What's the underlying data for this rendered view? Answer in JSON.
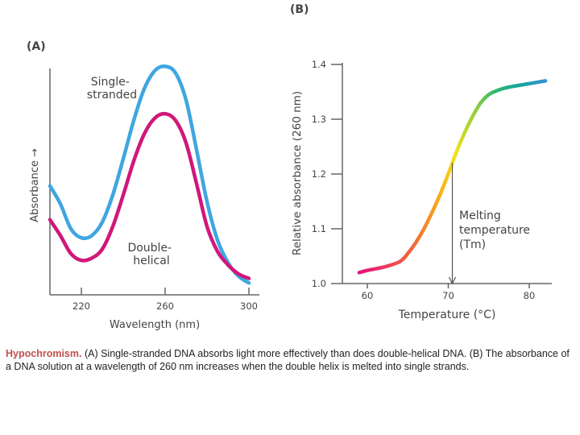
{
  "panel_a": {
    "label": "(A)",
    "ylabel": "Absorbance →",
    "xlabel": "Wavelength (nm)",
    "annotations": [
      [
        "Single-",
        "stranded"
      ],
      [
        "Double-",
        "helical"
      ]
    ]
  },
  "panel_b": {
    "label": "(B)",
    "ylabel": "Relative absorbance (260 nm)",
    "xlabel": "Temperature (°C)",
    "annotation": [
      "Melting",
      "temperature",
      "(Tm)"
    ]
  },
  "caption": {
    "lead": "Hypochromism.",
    "text": "(A) Single-stranded DNA absorbs light more effectively than does double-helical DNA. (B) The absorbance of a DNA solution at a wavelength of 260 nm increases when the double helix is melted into single strands."
  },
  "colors": {
    "single_stranded": "#3fa6e0",
    "double_helical": "#d0177a",
    "axis": "#666666",
    "caption_lead": "#c0504d"
  },
  "chart_data": [
    {
      "type": "line",
      "title": "(A)",
      "xlabel": "Wavelength (nm)",
      "ylabel": "Absorbance",
      "x_ticks": [
        220,
        260,
        300
      ],
      "xlim": [
        205,
        305
      ],
      "ylim": [
        0,
        1
      ],
      "y_ticks_shown": false,
      "series": [
        {
          "name": "Single-stranded",
          "color": "#3fa6e0",
          "x": [
            205,
            210,
            215,
            220,
            225,
            230,
            235,
            240,
            245,
            250,
            255,
            260,
            265,
            270,
            275,
            280,
            285,
            290,
            295,
            300
          ],
          "y": [
            0.44,
            0.36,
            0.25,
            0.21,
            0.22,
            0.28,
            0.4,
            0.56,
            0.73,
            0.87,
            0.95,
            0.97,
            0.94,
            0.82,
            0.6,
            0.37,
            0.2,
            0.1,
            0.04,
            0.01
          ]
        },
        {
          "name": "Double-helical",
          "color": "#d0177a",
          "x": [
            205,
            210,
            215,
            220,
            225,
            230,
            235,
            240,
            245,
            250,
            255,
            260,
            265,
            270,
            275,
            280,
            285,
            290,
            295,
            300
          ],
          "y": [
            0.29,
            0.22,
            0.14,
            0.11,
            0.12,
            0.16,
            0.26,
            0.4,
            0.55,
            0.67,
            0.74,
            0.76,
            0.73,
            0.63,
            0.45,
            0.26,
            0.15,
            0.09,
            0.05,
            0.03
          ]
        }
      ]
    },
    {
      "type": "line",
      "title": "(B)",
      "xlabel": "Temperature (°C)",
      "ylabel": "Relative absorbance (260 nm)",
      "xlim": [
        56,
        84
      ],
      "ylim": [
        1.0,
        1.4
      ],
      "x_ticks": [
        60,
        70,
        80
      ],
      "y_ticks": [
        1.0,
        1.1,
        1.2,
        1.3,
        1.4
      ],
      "annotation": {
        "text": "Melting temperature (Tm)",
        "x": 70.5
      },
      "series": [
        {
          "name": "",
          "color_gradient": [
            "#e8137a",
            "#f26b3a",
            "#f7a51c",
            "#f3e21b",
            "#9bd03a",
            "#2bb673",
            "#16a3a1",
            "#3a8fd8"
          ],
          "x": [
            59,
            60,
            62,
            64,
            65,
            66,
            67,
            68,
            69,
            70,
            71,
            72,
            73,
            74,
            75,
            76,
            77,
            78,
            80,
            82
          ],
          "y": [
            1.02,
            1.024,
            1.03,
            1.04,
            1.055,
            1.075,
            1.1,
            1.13,
            1.163,
            1.2,
            1.24,
            1.275,
            1.305,
            1.33,
            1.345,
            1.352,
            1.357,
            1.36,
            1.365,
            1.37
          ]
        }
      ]
    }
  ]
}
